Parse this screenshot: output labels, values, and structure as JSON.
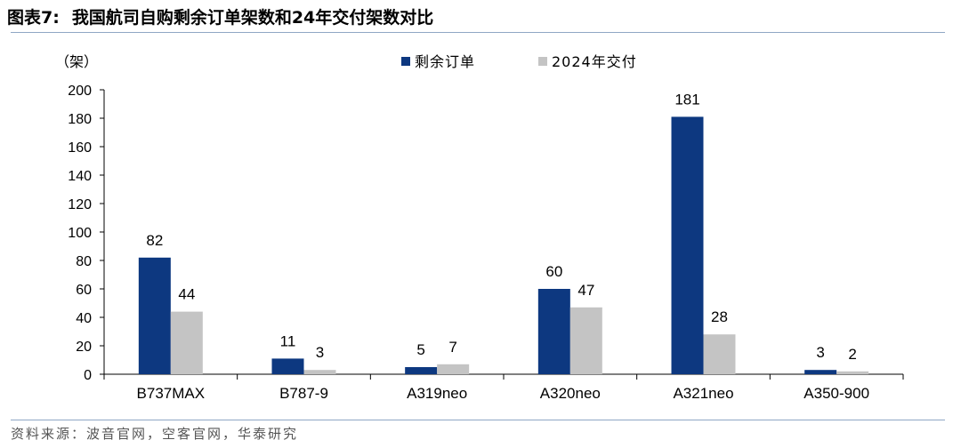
{
  "figure": {
    "label": "图表7:",
    "title": "我国航司自购剩余订单架数和24年交付架数对比",
    "source": "资料来源：波音官网，空客官网，华泰研究"
  },
  "colors": {
    "remaining": "#0d3880",
    "delivered": "#c4c4c4",
    "rule": "#8fa7c4"
  },
  "chart_data": {
    "type": "bar",
    "title": "我国航司自购剩余订单架数和24年交付架数对比",
    "unit_label": "（架）",
    "categories": [
      "B737MAX",
      "B787-9",
      "A319neo",
      "A320neo",
      "A321neo",
      "A350-900"
    ],
    "series": [
      {
        "name": "剩余订单",
        "values": [
          82,
          11,
          5,
          60,
          181,
          3
        ]
      },
      {
        "name": "2024年交付",
        "values": [
          44,
          3,
          7,
          47,
          28,
          2
        ]
      }
    ],
    "ylim": [
      0,
      200
    ],
    "yticks": [
      0,
      20,
      40,
      60,
      80,
      100,
      120,
      140,
      160,
      180,
      200
    ],
    "grid": false,
    "legend_position": "top-center",
    "xlabel": "",
    "ylabel": ""
  }
}
